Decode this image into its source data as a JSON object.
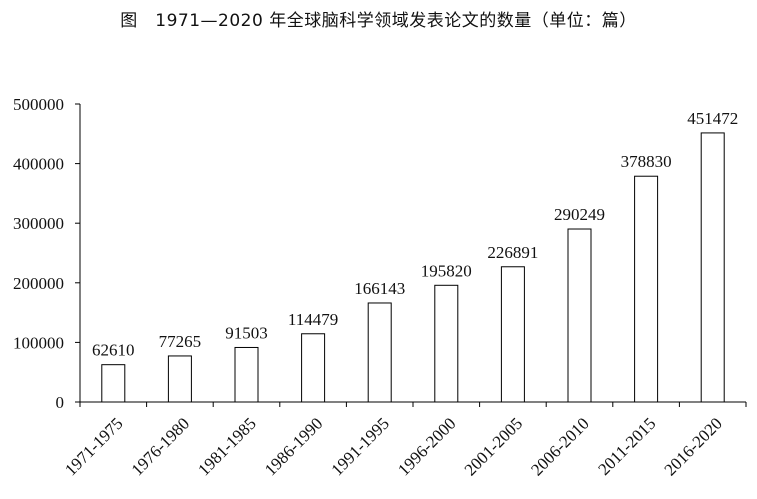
{
  "chart_data": {
    "type": "bar",
    "title": "图　1971—2020 年全球脑科学领域发表论文的数量（单位：篇）",
    "categories": [
      "1971-1975",
      "1976-1980",
      "1981-1985",
      "1986-1990",
      "1991-1995",
      "1996-2000",
      "2001-2005",
      "2006-2010",
      "2011-2015",
      "2016-2020"
    ],
    "values": [
      62610,
      77265,
      91503,
      114479,
      166143,
      195820,
      226891,
      290249,
      378830,
      451472
    ],
    "ylim": [
      0,
      500000
    ],
    "yticks": [
      0,
      100000,
      200000,
      300000,
      400000,
      500000
    ],
    "ytick_labels": [
      "0",
      "100000",
      "200000",
      "300000",
      "400000",
      "500000"
    ],
    "xlabel": "",
    "ylabel": "",
    "grid": false,
    "bar_fill": "#ffffff",
    "bar_stroke": "#000000"
  }
}
